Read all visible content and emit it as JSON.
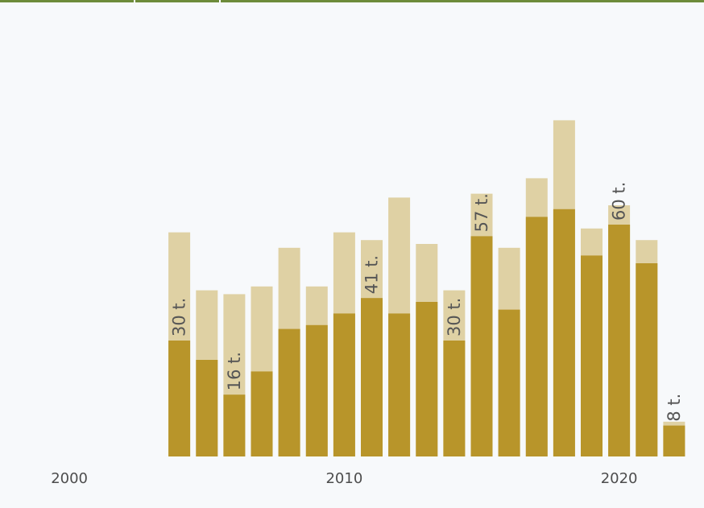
{
  "colors": {
    "background": "#f7f9fb",
    "header_line": "#6d8b3a",
    "bar_light": "#dfd1a4",
    "bar_dark": "#b8952a",
    "label_text": "#555555",
    "tick_text": "#4d4d4d"
  },
  "chart_data": {
    "type": "bar",
    "stacked": false,
    "overlapping": true,
    "title": "",
    "xlabel": "",
    "ylabel": "",
    "x": [
      2004,
      2005,
      2006,
      2007,
      2008,
      2009,
      2010,
      2011,
      2012,
      2013,
      2014,
      2015,
      2016,
      2017,
      2018,
      2019,
      2020,
      2021,
      2022
    ],
    "x_ticks": [
      "2000",
      "2010",
      "2020"
    ],
    "xlim": [
      1999,
      2023
    ],
    "ylim": [
      0,
      100
    ],
    "grid": false,
    "legend": "none",
    "series": [
      {
        "color": "#dfd1a4",
        "values": [
          58,
          43,
          42,
          44,
          54,
          44,
          58,
          56,
          67,
          55,
          43,
          68,
          54,
          72,
          87,
          59,
          65,
          56,
          9
        ]
      },
      {
        "color": "#b8952a",
        "values": [
          30,
          25,
          16,
          22,
          33,
          34,
          37,
          41,
          37,
          40,
          30,
          57,
          38,
          62,
          64,
          52,
          60,
          50,
          8
        ]
      }
    ],
    "data_labels": [
      {
        "year": 2004,
        "text": "30 t."
      },
      {
        "year": 2006,
        "text": "16 t."
      },
      {
        "year": 2011,
        "text": "41 t."
      },
      {
        "year": 2014,
        "text": "30 t."
      },
      {
        "year": 2015,
        "text": "57 t."
      },
      {
        "year": 2020,
        "text": "60 t."
      },
      {
        "year": 2022,
        "text": "8 t."
      }
    ]
  }
}
